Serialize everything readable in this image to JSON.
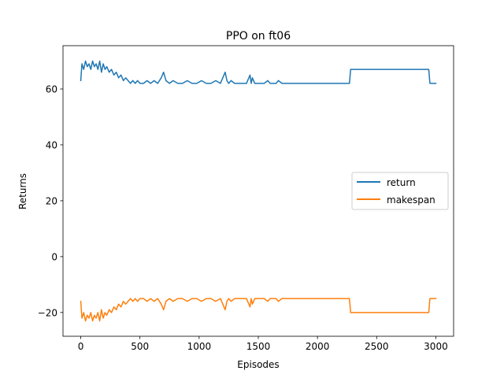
{
  "chart_data": {
    "type": "line",
    "title": "PPO on ft06",
    "xlabel": "Episodes",
    "ylabel": "Returns",
    "xlim": [
      -150,
      3150
    ],
    "ylim": [
      -28.5,
      75.5
    ],
    "xticks": [
      0,
      500,
      1000,
      1500,
      2000,
      2500,
      3000
    ],
    "yticks": [
      -20,
      0,
      20,
      40,
      60
    ],
    "ytick_labels": [
      "−20",
      "0",
      "20",
      "40",
      "60"
    ],
    "grid": false,
    "legend_position": "center-right",
    "series": [
      {
        "name": "return",
        "color": "#1f77b4",
        "x": [
          0,
          10,
          25,
          40,
          55,
          70,
          85,
          100,
          115,
          130,
          145,
          160,
          175,
          190,
          205,
          220,
          240,
          260,
          280,
          300,
          320,
          340,
          360,
          380,
          400,
          420,
          440,
          460,
          480,
          500,
          530,
          560,
          590,
          620,
          650,
          680,
          700,
          720,
          750,
          780,
          820,
          860,
          900,
          940,
          980,
          1020,
          1060,
          1100,
          1140,
          1180,
          1220,
          1235,
          1250,
          1270,
          1300,
          1350,
          1400,
          1430,
          1440,
          1450,
          1470,
          1500,
          1550,
          1580,
          1600,
          1650,
          1670,
          1700,
          1800,
          1850,
          1860,
          1900,
          2000,
          2100,
          2200,
          2270,
          2280,
          2400,
          2600,
          2800,
          2940,
          2950,
          3000
        ],
        "values": [
          63,
          69,
          67,
          70,
          68,
          69,
          67,
          70,
          68,
          69,
          67,
          70,
          66,
          69,
          67,
          68,
          66,
          67,
          65,
          66,
          64,
          65,
          63,
          64,
          63,
          62,
          63,
          62,
          63,
          62,
          62,
          63,
          62,
          63,
          62,
          64,
          66,
          63,
          62,
          63,
          62,
          62,
          63,
          62,
          62,
          63,
          62,
          62,
          63,
          62,
          66,
          63,
          62,
          63,
          62,
          62,
          62,
          65,
          62,
          64,
          62,
          62,
          62,
          63,
          62,
          62,
          63,
          62,
          62,
          62,
          62,
          62,
          62,
          62,
          62,
          62,
          67,
          67,
          67,
          67,
          67,
          62,
          62
        ]
      },
      {
        "name": "makespan",
        "color": "#ff7f0e",
        "x": [
          0,
          10,
          25,
          40,
          55,
          70,
          85,
          100,
          115,
          130,
          145,
          160,
          175,
          190,
          205,
          220,
          240,
          260,
          280,
          300,
          320,
          340,
          360,
          380,
          400,
          420,
          440,
          460,
          480,
          500,
          530,
          560,
          590,
          620,
          650,
          680,
          700,
          720,
          750,
          780,
          820,
          860,
          900,
          940,
          980,
          1020,
          1060,
          1100,
          1140,
          1180,
          1220,
          1235,
          1250,
          1270,
          1300,
          1350,
          1400,
          1430,
          1440,
          1450,
          1470,
          1500,
          1550,
          1580,
          1600,
          1650,
          1670,
          1700,
          1800,
          1850,
          1860,
          1900,
          2000,
          2100,
          2200,
          2270,
          2280,
          2400,
          2600,
          2800,
          2940,
          2950,
          3000
        ],
        "values": [
          -16,
          -22,
          -20,
          -23,
          -21,
          -22,
          -20,
          -23,
          -21,
          -22,
          -20,
          -23,
          -19,
          -22,
          -20,
          -21,
          -19,
          -20,
          -18,
          -19,
          -17,
          -18,
          -16,
          -17,
          -16,
          -15,
          -16,
          -15,
          -16,
          -15,
          -15,
          -16,
          -15,
          -16,
          -15,
          -17,
          -19,
          -16,
          -15,
          -16,
          -15,
          -15,
          -16,
          -15,
          -15,
          -16,
          -15,
          -15,
          -16,
          -15,
          -19,
          -16,
          -15,
          -16,
          -15,
          -15,
          -15,
          -18,
          -15,
          -17,
          -15,
          -15,
          -15,
          -16,
          -15,
          -15,
          -16,
          -15,
          -15,
          -15,
          -15,
          -15,
          -15,
          -15,
          -15,
          -15,
          -20,
          -20,
          -20,
          -20,
          -20,
          -15,
          -15
        ]
      }
    ]
  }
}
